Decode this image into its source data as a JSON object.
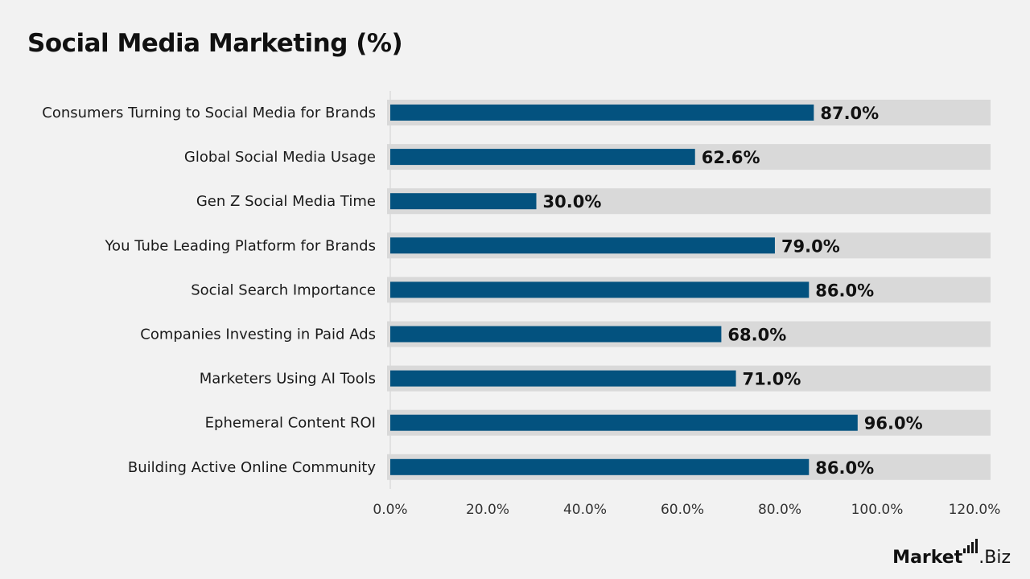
{
  "chart_data": {
    "type": "bar",
    "orientation": "horizontal",
    "title": "Social Media Marketing (%)",
    "categories": [
      "Consumers Turning to Social Media for Brands",
      "Global Social Media Usage",
      "Gen Z Social Media Time",
      "You Tube Leading Platform for Brands",
      "Social Search Importance",
      "Companies Investing in Paid Ads",
      "Marketers Using AI Tools",
      "Ephemeral Content ROI",
      "Building Active Online Community"
    ],
    "values": [
      87.0,
      62.6,
      30.0,
      79.0,
      86.0,
      68.0,
      71.0,
      96.0,
      86.0
    ],
    "value_labels": [
      "87.0%",
      "62.6%",
      "30.0%",
      "79.0%",
      "86.0%",
      "68.0%",
      "71.0%",
      "96.0%",
      "86.0%"
    ],
    "xlim": [
      0,
      120
    ],
    "x_ticks": [
      "0.0%",
      "20.0%",
      "40.0%",
      "60.0%",
      "80.0%",
      "100.0%",
      "120.0%"
    ],
    "grid": false,
    "colors": {
      "bar": "#03527f",
      "track": "#d9d9d9",
      "background": "#f2f2f2"
    }
  },
  "brand": {
    "text_bold": "Market",
    "text_regular": ".Biz"
  }
}
